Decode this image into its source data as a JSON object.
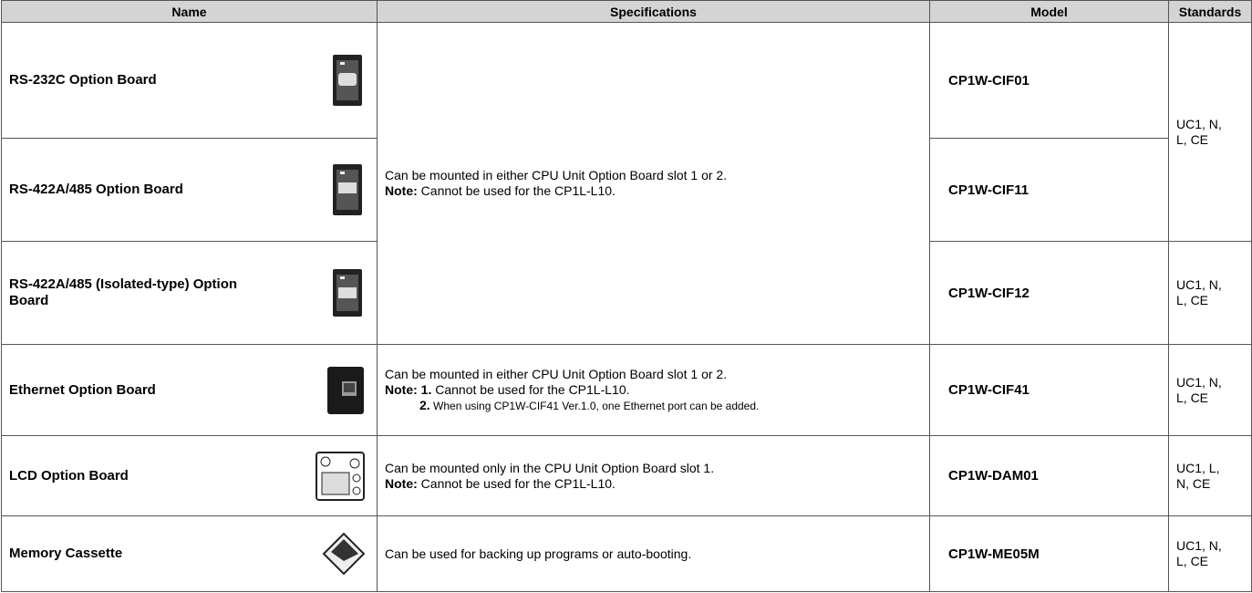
{
  "table": {
    "header": [
      "Name",
      "Specifications",
      "Model",
      "Standards"
    ],
    "rows": [
      {
        "name": "RS-232C Option Board",
        "model": "CP1W-CIF01",
        "spec": {
          "text": "Can be mounted in either CPU Unit Option Board slot 1 or 2.",
          "note_label": "Note:",
          "note": "Cannot be used for the CP1L-L10."
        },
        "standards": "UC1, N, L, CE"
      },
      {
        "name": "RS-422A/485 Option Board",
        "model": "CP1W-CIF11"
      },
      {
        "name": "RS-422A/485 (Isolated-type) Option Board",
        "model": "CP1W-CIF12",
        "standards": "UC1, N, L, CE"
      },
      {
        "name": "Ethernet Option Board",
        "model": "CP1W-CIF41",
        "spec": {
          "text": "Can be mounted in either CPU Unit Option Board slot 1 or 2.",
          "note_label": "Note:",
          "notes": [
            {
              "num": "1.",
              "text": "Cannot be used for the CP1L-L10."
            },
            {
              "num": "2.",
              "text": "When using CP1W-CIF41 Ver.1.0, one Ethernet port can be added."
            }
          ]
        },
        "standards": "UC1, N, L, CE"
      },
      {
        "name": "LCD Option Board",
        "model": "CP1W-DAM01",
        "spec": {
          "text": "Can be mounted only in the CPU Unit Option Board slot 1.",
          "note_label": "Note:",
          "note": "Cannot be used for the CP1L-L10."
        },
        "standards": "UC1, L, N, CE"
      },
      {
        "name": "Memory Cassette",
        "model": "CP1W-ME05M",
        "spec": {
          "text": "Can be used for backing up programs or auto-booting."
        },
        "standards": "UC1, N, L, CE"
      }
    ]
  }
}
